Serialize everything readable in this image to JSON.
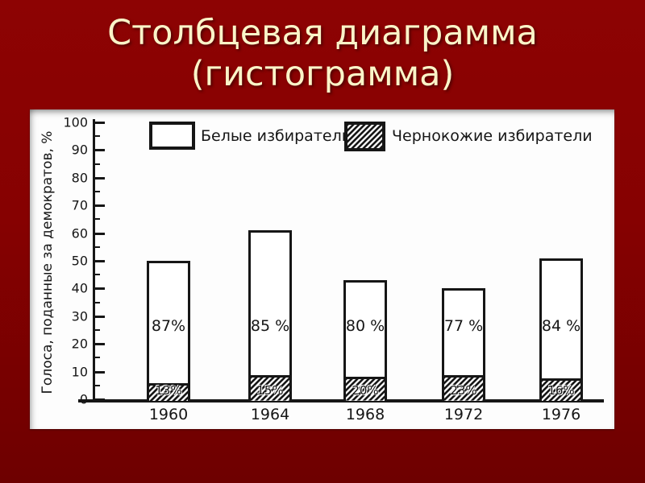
{
  "slide": {
    "title_line1": "Столбцевая диаграмма",
    "title_line2": "(гистограмма)",
    "background_top": "#8d0303",
    "background_bottom": "#6e0000",
    "title_color": "#faf4c8"
  },
  "chart_data": {
    "type": "bar",
    "stacked": true,
    "ylabel": "Голоса, поданные за демократов, %",
    "ylim": [
      0,
      100
    ],
    "ytick_step": 10,
    "ytick_minor_step": 5,
    "grid": false,
    "legend_position": "top",
    "ink_color": "#161616",
    "legend": [
      {
        "label": "Белые избиратели",
        "style": "white"
      },
      {
        "label": "Чернокожие избиратели",
        "style": "hatched"
      }
    ],
    "categories": [
      "1960",
      "1964",
      "1968",
      "1972",
      "1976"
    ],
    "series": [
      {
        "name": "total_height_pct",
        "values": [
          50,
          61,
          43,
          40,
          51
        ]
      },
      {
        "name": "black_segment_height_pct",
        "values": [
          6.5,
          9.2,
          8.6,
          9.2,
          8.2
        ]
      }
    ],
    "white_labels": [
      "87%",
      "85 %",
      "80 %",
      "77 %",
      "84 %"
    ],
    "black_labels": [
      "13%",
      "15%",
      "20%",
      "23%",
      "16%"
    ]
  }
}
